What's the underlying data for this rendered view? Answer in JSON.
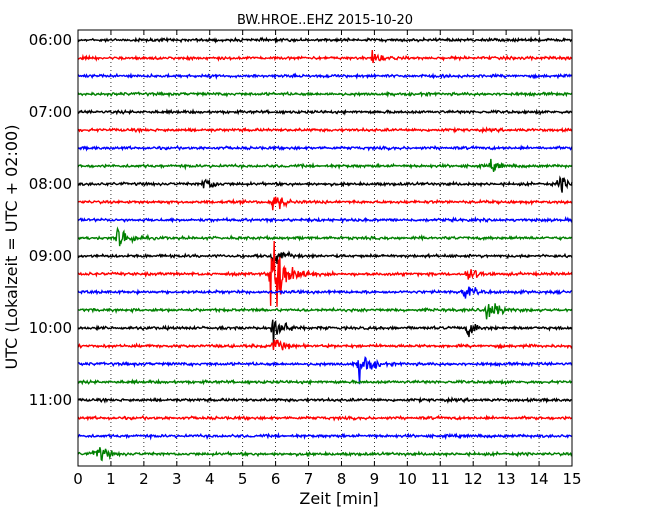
{
  "chart_data": {
    "type": "line",
    "title": "BW.HROE..EHZ 2015-10-20",
    "xlabel": "Zeit  [min]",
    "ylabel": "UTC (Lokalzeit = UTC + 02:00)",
    "xlim": [
      0,
      15
    ],
    "xticks": [
      "0",
      "1",
      "2",
      "3",
      "4",
      "5",
      "6",
      "7",
      "8",
      "9",
      "10",
      "11",
      "12",
      "13",
      "14",
      "15"
    ],
    "yticks": [
      "06:00",
      "07:00",
      "08:00",
      "09:00",
      "10:00",
      "11:00"
    ],
    "row_interval_min": 15,
    "grid": "vertical dotted",
    "series_colors": [
      "#000000",
      "#ff0000",
      "#0000ff",
      "#008000"
    ],
    "traces": [
      {
        "start": "06:00",
        "color": "#000000",
        "events": []
      },
      {
        "start": "06:15",
        "color": "#ff0000",
        "events": [
          {
            "t_min": 8.9,
            "amplitude": 0.4
          }
        ]
      },
      {
        "start": "06:30",
        "color": "#0000ff",
        "events": []
      },
      {
        "start": "06:45",
        "color": "#008000",
        "events": []
      },
      {
        "start": "07:00",
        "color": "#000000",
        "events": []
      },
      {
        "start": "07:15",
        "color": "#ff0000",
        "events": []
      },
      {
        "start": "07:30",
        "color": "#0000ff",
        "events": []
      },
      {
        "start": "07:45",
        "color": "#008000",
        "events": [
          {
            "t_min": 12.5,
            "amplitude": 0.4
          }
        ]
      },
      {
        "start": "08:00",
        "color": "#000000",
        "events": [
          {
            "t_min": 3.8,
            "amplitude": 0.5
          },
          {
            "t_min": 14.6,
            "amplitude": 0.6
          }
        ]
      },
      {
        "start": "08:15",
        "color": "#ff0000",
        "events": [
          {
            "t_min": 5.9,
            "amplitude": 0.8
          }
        ]
      },
      {
        "start": "08:30",
        "color": "#0000ff",
        "events": []
      },
      {
        "start": "08:45",
        "color": "#008000",
        "events": [
          {
            "t_min": 1.2,
            "amplitude": 1.0
          }
        ]
      },
      {
        "start": "09:00",
        "color": "#000000",
        "events": [
          {
            "t_min": 5.9,
            "amplitude": 0.7
          }
        ]
      },
      {
        "start": "09:15",
        "color": "#ff0000",
        "events": [
          {
            "t_min": 5.85,
            "amplitude": 4.0
          },
          {
            "t_min": 11.8,
            "amplitude": 0.6
          }
        ]
      },
      {
        "start": "09:30",
        "color": "#0000ff",
        "events": [
          {
            "t_min": 11.7,
            "amplitude": 0.5
          }
        ]
      },
      {
        "start": "09:45",
        "color": "#008000",
        "events": [
          {
            "t_min": 12.4,
            "amplitude": 0.9
          }
        ]
      },
      {
        "start": "10:00",
        "color": "#000000",
        "events": [
          {
            "t_min": 5.9,
            "amplitude": 1.2
          },
          {
            "t_min": 11.8,
            "amplitude": 0.6
          }
        ]
      },
      {
        "start": "10:15",
        "color": "#ff0000",
        "events": [
          {
            "t_min": 5.9,
            "amplitude": 0.6
          }
        ]
      },
      {
        "start": "10:30",
        "color": "#0000ff",
        "events": [
          {
            "t_min": 8.5,
            "amplitude": 1.2
          }
        ]
      },
      {
        "start": "10:45",
        "color": "#008000",
        "events": []
      },
      {
        "start": "11:00",
        "color": "#000000",
        "events": []
      },
      {
        "start": "11:15",
        "color": "#ff0000",
        "events": []
      },
      {
        "start": "11:30",
        "color": "#0000ff",
        "events": []
      },
      {
        "start": "11:45",
        "color": "#008000",
        "events": [
          {
            "t_min": 0.5,
            "amplitude": 0.8
          }
        ]
      }
    ]
  }
}
